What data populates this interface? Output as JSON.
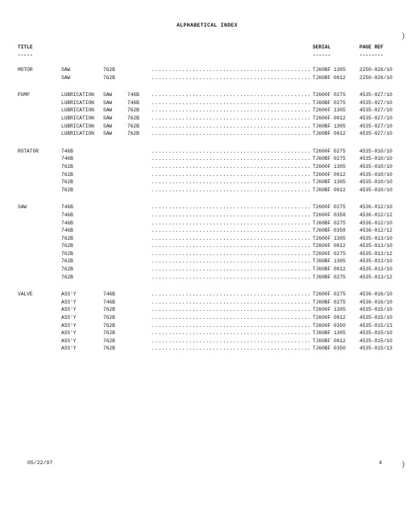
{
  "title": "ALPHABETICAL INDEX",
  "header": {
    "title": "TITLE",
    "serial": "SERIAL",
    "page": "PAGE REF"
  },
  "dash": {
    "title": "-----",
    "serial": "------",
    "page": "--------"
  },
  "footer": {
    "date": "05/22/97",
    "page": "4"
  },
  "curl": {
    "top": ")",
    "bot": ")"
  },
  "dots": "..................................................................................................",
  "groups": [
    {
      "name": "MOTOR",
      "rows": [
        {
          "a": "SAW",
          "b": "762B",
          "c": "",
          "serial": "TJ60BF 1305",
          "page": "2250-026/10"
        },
        {
          "a": "SAW",
          "b": "762B",
          "c": "",
          "serial": "TJ60BF 0012",
          "page": "2250-026/10"
        }
      ]
    },
    {
      "name": "PUMP",
      "rows": [
        {
          "a": "LUBRICATION",
          "b": "SAW",
          "c": "746B",
          "serial": "T2600F 0275",
          "page": "4535-027/10"
        },
        {
          "a": "LUBRICATION",
          "b": "SAW",
          "c": "746B",
          "serial": "TJ60BF 0275",
          "page": "4535-027/10"
        },
        {
          "a": "LUBRICATION",
          "b": "SAW",
          "c": "762B",
          "serial": "T2600F 1305",
          "page": "4535-027/10"
        },
        {
          "a": "LUBRICATION",
          "b": "SAW",
          "c": "762B",
          "serial": "T2600F 0012",
          "page": "4535-027/10"
        },
        {
          "a": "LUBRICATION",
          "b": "SAW",
          "c": "762B",
          "serial": "TJ60BF 1305",
          "page": "4535-027/10"
        },
        {
          "a": "LUBRICATION",
          "b": "SAW",
          "c": "762B",
          "serial": "TJ60BF 0012",
          "page": "4535-027/10"
        }
      ]
    },
    {
      "name": "ROTATOR",
      "rows": [
        {
          "a": "746B",
          "b": "",
          "c": "",
          "serial": "T2600F 0275",
          "page": "4535-010/10"
        },
        {
          "a": "746B",
          "b": "",
          "c": "",
          "serial": "TJ60BF 0275",
          "page": "4535-010/10"
        },
        {
          "a": "762B",
          "b": "",
          "c": "",
          "serial": "T2600F 1305",
          "page": "4535-010/10"
        },
        {
          "a": "762B",
          "b": "",
          "c": "",
          "serial": "T2600F 0012",
          "page": "4535-010/10"
        },
        {
          "a": "762B",
          "b": "",
          "c": "",
          "serial": "TJ60BF 1305",
          "page": "4535-010/10"
        },
        {
          "a": "762B",
          "b": "",
          "c": "",
          "serial": "TJ60BF 0012",
          "page": "4535-010/10"
        }
      ]
    },
    {
      "name": "SAW",
      "rows": [
        {
          "a": "746B",
          "b": "",
          "c": "",
          "serial": "T2600F 0275",
          "page": "4536-012/10"
        },
        {
          "a": "746B",
          "b": "",
          "c": "",
          "serial": "T2600F 0358",
          "page": "4536-012/12"
        },
        {
          "a": "746B",
          "b": "",
          "c": "",
          "serial": "TJ60BF 0275",
          "page": "4536-012/10"
        },
        {
          "a": "746B",
          "b": "",
          "c": "",
          "serial": "TJ60BF 0358",
          "page": "4536-012/12"
        },
        {
          "a": "762B",
          "b": "",
          "c": "",
          "serial": "T2600F 1305",
          "page": "4535-013/10"
        },
        {
          "a": "762B",
          "b": "",
          "c": "",
          "serial": "T2600F 0012",
          "page": "4535-013/10"
        },
        {
          "a": "762B",
          "b": "",
          "c": "",
          "serial": "T2600F 0275",
          "page": "4535-013/12"
        },
        {
          "a": "762B",
          "b": "",
          "c": "",
          "serial": "TJ60BF 1305",
          "page": "4535-013/10"
        },
        {
          "a": "762B",
          "b": "",
          "c": "",
          "serial": "TJ60BF 0012",
          "page": "4535-013/10"
        },
        {
          "a": "762B",
          "b": "",
          "c": "",
          "serial": "TJ60BF 0275",
          "page": "4535-013/12"
        }
      ]
    },
    {
      "name": "VALVE",
      "rows": [
        {
          "a": "ASS'Y",
          "b": "746B",
          "c": "",
          "serial": "T2600F 0275",
          "page": "4536-016/10"
        },
        {
          "a": "ASS'Y",
          "b": "746B",
          "c": "",
          "serial": "TJ60BF 0275",
          "page": "4536-016/10"
        },
        {
          "a": "ASS'Y",
          "b": "762B",
          "c": "",
          "serial": "T2600F 1305",
          "page": "4535-015/10"
        },
        {
          "a": "ASS'Y",
          "b": "762B",
          "c": "",
          "serial": "T2600F 0012",
          "page": "4535-015/10"
        },
        {
          "a": "ASS'Y",
          "b": "762B",
          "c": "",
          "serial": "T2600F 0350",
          "page": "4535-015/13"
        },
        {
          "a": "ASS'Y",
          "b": "762B",
          "c": "",
          "serial": "TJ60BF 1305",
          "page": "4535-015/10"
        },
        {
          "a": "ASS'Y",
          "b": "762B",
          "c": "",
          "serial": "TJ60BF 0012",
          "page": "4535-015/10"
        },
        {
          "a": "ASS'Y",
          "b": "762B",
          "c": "",
          "serial": "TJ60BF 0350",
          "page": "4535-015/13"
        }
      ]
    }
  ]
}
